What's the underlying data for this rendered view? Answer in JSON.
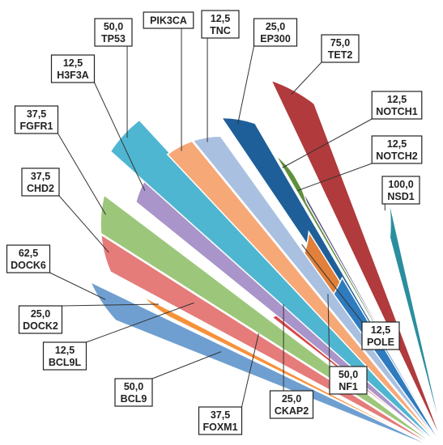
{
  "chart_data": {
    "type": "pie",
    "title": "",
    "style": "exploded polar-area pie, equal angles, radius proportional to value, labels in boxes with leader lines",
    "max_value": 100,
    "series": [
      {
        "name": "EP300",
        "value": 25.0,
        "label_value": "25,0",
        "color": "#1F5F99"
      },
      {
        "name": "TET2",
        "value": 75.0,
        "label_value": "75,0",
        "color": "#B03A3C"
      },
      {
        "name": "NOTCH1",
        "value": 12.5,
        "label_value": "12,5",
        "color": "#5E8F3A"
      },
      {
        "name": "NOTCH2",
        "value": 12.5,
        "label_value": "12,5",
        "color": "#5C4A8A"
      },
      {
        "name": "NSD1",
        "value": 100.0,
        "label_value": "100,0",
        "color": "#2A8E9E"
      },
      {
        "name": "POLE",
        "value": 12.5,
        "label_value": "12,5",
        "color": "#E0803A"
      },
      {
        "name": "NF1",
        "value": 50.0,
        "label_value": "50,0",
        "color": "#2E7BBF"
      },
      {
        "name": "CKAP2",
        "value": 25.0,
        "label_value": "25,0",
        "color": "#D94A4A"
      },
      {
        "name": "FOXM1",
        "value": 37.5,
        "label_value": "37,5",
        "color": "#7CB544"
      },
      {
        "name": "BCL9",
        "value": 50.0,
        "label_value": "50,0",
        "color": "#7B5CA6"
      },
      {
        "name": "BCL9L",
        "value": 12.5,
        "label_value": "12,5",
        "color": "#21A6C2"
      },
      {
        "name": "DOCK2",
        "value": 25.0,
        "label_value": "25,0",
        "color": "#F7913A"
      },
      {
        "name": "DOCK6",
        "value": 62.5,
        "label_value": "62,5",
        "color": "#6F9FD0"
      },
      {
        "name": "CHD2",
        "value": 37.5,
        "label_value": "37,5",
        "color": "#E57C7A"
      },
      {
        "name": "FGFR1",
        "value": 37.5,
        "label_value": "37,5",
        "color": "#9CC77A"
      },
      {
        "name": "H3F3A",
        "value": 12.5,
        "label_value": "12,5",
        "color": "#A995C9"
      },
      {
        "name": "TP53",
        "value": 50.0,
        "label_value": "50,0",
        "color": "#4FB6D1"
      },
      {
        "name": "PIK3CA",
        "value": 12.5,
        "label_value": "",
        "color": "#F7A877"
      },
      {
        "name": "TNC",
        "value": 12.5,
        "label_value": "12,5",
        "color": "#A9C0E0"
      }
    ]
  }
}
